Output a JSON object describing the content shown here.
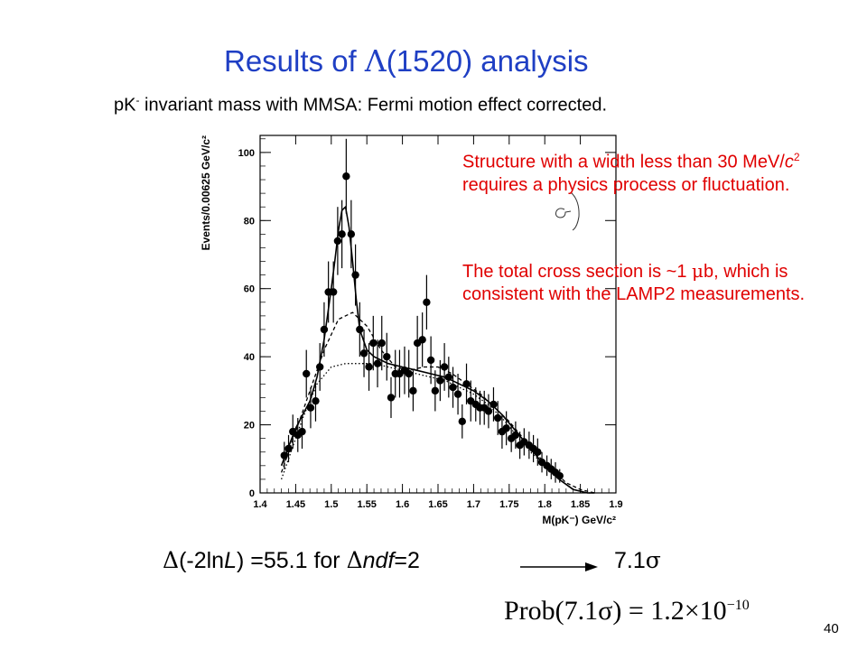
{
  "slide": {
    "title_pre": "Results of ",
    "title_sym": "Λ",
    "title_post": "(1520) analysis",
    "subtitle_a": "pK",
    "subtitle_sup": "-",
    "subtitle_b": " invariant mass with MMSA: Fermi motion effect corrected.",
    "annotation1_a": "Structure with a width less than 30 MeV/",
    "annotation1_c": "c",
    "annotation1_sup": "2",
    "annotation1_b": " requires a physics process or fluctuation.",
    "annotation2_a": "The total cross section is ~1 ",
    "annotation2_mu": "μ",
    "annotation2_b": "b, which is consistent with the LAMP2 measurements.",
    "eq_delta1": "Δ",
    "eq_part1": "(-2ln",
    "eq_L": "L",
    "eq_part2": ") =55.1 for ",
    "eq_delta2": "Δ",
    "eq_ndf": "ndf",
    "eq_part3": "=2",
    "sigma_result": "7.1",
    "sigma_sym": "σ",
    "prob_text": "Prob(7.1σ) = 1.2×10",
    "prob_exp": "−10",
    "page_number": "40"
  },
  "chart_data": {
    "type": "scatter",
    "xlabel": "M(pK⁻) GeV/c²",
    "ylabel": "Events/0.00625 GeV/c²",
    "xlim": [
      1.4,
      1.9
    ],
    "ylim": [
      0,
      105
    ],
    "x_ticks": [
      "1.4",
      "1.45",
      "1.5",
      "1.55",
      "1.6",
      "1.65",
      "1.7",
      "1.75",
      "1.8",
      "1.85",
      "1.9"
    ],
    "y_ticks": [
      "0",
      "20",
      "40",
      "60",
      "80",
      "100"
    ],
    "points": [
      {
        "x": 1.434,
        "y": 11,
        "e": 4
      },
      {
        "x": 1.44,
        "y": 13,
        "e": 4
      },
      {
        "x": 1.446,
        "y": 18,
        "e": 5
      },
      {
        "x": 1.453,
        "y": 17,
        "e": 5
      },
      {
        "x": 1.459,
        "y": 18,
        "e": 5
      },
      {
        "x": 1.465,
        "y": 35,
        "e": 7
      },
      {
        "x": 1.471,
        "y": 25,
        "e": 6
      },
      {
        "x": 1.478,
        "y": 27,
        "e": 6
      },
      {
        "x": 1.484,
        "y": 37,
        "e": 7
      },
      {
        "x": 1.49,
        "y": 48,
        "e": 8
      },
      {
        "x": 1.496,
        "y": 59,
        "e": 9
      },
      {
        "x": 1.503,
        "y": 59,
        "e": 9
      },
      {
        "x": 1.509,
        "y": 74,
        "e": 10
      },
      {
        "x": 1.515,
        "y": 76,
        "e": 10
      },
      {
        "x": 1.521,
        "y": 93,
        "e": 11
      },
      {
        "x": 1.528,
        "y": 76,
        "e": 10
      },
      {
        "x": 1.534,
        "y": 64,
        "e": 9
      },
      {
        "x": 1.54,
        "y": 48,
        "e": 8
      },
      {
        "x": 1.546,
        "y": 41,
        "e": 7
      },
      {
        "x": 1.553,
        "y": 37,
        "e": 7
      },
      {
        "x": 1.559,
        "y": 44,
        "e": 8
      },
      {
        "x": 1.565,
        "y": 38,
        "e": 7
      },
      {
        "x": 1.571,
        "y": 44,
        "e": 8
      },
      {
        "x": 1.578,
        "y": 40,
        "e": 7
      },
      {
        "x": 1.584,
        "y": 28,
        "e": 6
      },
      {
        "x": 1.59,
        "y": 35,
        "e": 7
      },
      {
        "x": 1.596,
        "y": 35,
        "e": 7
      },
      {
        "x": 1.603,
        "y": 36,
        "e": 7
      },
      {
        "x": 1.609,
        "y": 35,
        "e": 7
      },
      {
        "x": 1.615,
        "y": 30,
        "e": 6
      },
      {
        "x": 1.621,
        "y": 44,
        "e": 8
      },
      {
        "x": 1.628,
        "y": 45,
        "e": 8
      },
      {
        "x": 1.634,
        "y": 56,
        "e": 8
      },
      {
        "x": 1.64,
        "y": 39,
        "e": 7
      },
      {
        "x": 1.646,
        "y": 30,
        "e": 6
      },
      {
        "x": 1.653,
        "y": 33,
        "e": 6
      },
      {
        "x": 1.659,
        "y": 37,
        "e": 7
      },
      {
        "x": 1.665,
        "y": 34,
        "e": 6
      },
      {
        "x": 1.671,
        "y": 31,
        "e": 6
      },
      {
        "x": 1.678,
        "y": 29,
        "e": 6
      },
      {
        "x": 1.684,
        "y": 21,
        "e": 5
      },
      {
        "x": 1.69,
        "y": 32,
        "e": 6
      },
      {
        "x": 1.696,
        "y": 27,
        "e": 6
      },
      {
        "x": 1.703,
        "y": 26,
        "e": 5
      },
      {
        "x": 1.709,
        "y": 25,
        "e": 5
      },
      {
        "x": 1.715,
        "y": 25,
        "e": 5
      },
      {
        "x": 1.721,
        "y": 24,
        "e": 5
      },
      {
        "x": 1.728,
        "y": 26,
        "e": 5
      },
      {
        "x": 1.734,
        "y": 22,
        "e": 5
      },
      {
        "x": 1.74,
        "y": 18,
        "e": 5
      },
      {
        "x": 1.746,
        "y": 19,
        "e": 5
      },
      {
        "x": 1.753,
        "y": 16,
        "e": 4
      },
      {
        "x": 1.759,
        "y": 17,
        "e": 4
      },
      {
        "x": 1.765,
        "y": 14,
        "e": 4
      },
      {
        "x": 1.771,
        "y": 15,
        "e": 4
      },
      {
        "x": 1.778,
        "y": 14,
        "e": 4
      },
      {
        "x": 1.784,
        "y": 13,
        "e": 4
      },
      {
        "x": 1.79,
        "y": 12,
        "e": 4
      },
      {
        "x": 1.796,
        "y": 9,
        "e": 3
      },
      {
        "x": 1.803,
        "y": 8,
        "e": 3
      },
      {
        "x": 1.809,
        "y": 7,
        "e": 3
      },
      {
        "x": 1.815,
        "y": 6,
        "e": 3
      },
      {
        "x": 1.821,
        "y": 5,
        "e": 2
      }
    ],
    "curves": [
      {
        "style": "solid",
        "x": [
          1.43,
          1.45,
          1.47,
          1.48,
          1.49,
          1.5,
          1.505,
          1.51,
          1.515,
          1.52,
          1.525,
          1.53,
          1.535,
          1.54,
          1.55,
          1.56,
          1.58,
          1.6,
          1.62,
          1.64,
          1.66,
          1.68,
          1.7,
          1.72,
          1.74,
          1.76,
          1.78,
          1.8,
          1.82,
          1.84,
          1.86,
          1.87
        ],
        "y": [
          8,
          19,
          27,
          34,
          45,
          60,
          68,
          77,
          83,
          84,
          78,
          68,
          57,
          48,
          42,
          40,
          38,
          37,
          36,
          35,
          34,
          32,
          30,
          27,
          23,
          18,
          13,
          8,
          4,
          1,
          0,
          0
        ]
      },
      {
        "style": "dashed",
        "x": [
          1.43,
          1.45,
          1.47,
          1.49,
          1.51,
          1.53,
          1.55,
          1.57,
          1.59,
          1.61,
          1.63,
          1.65,
          1.67,
          1.69,
          1.71,
          1.73,
          1.75,
          1.77,
          1.79,
          1.81,
          1.83,
          1.85,
          1.87
        ],
        "y": [
          6,
          18,
          30,
          42,
          51,
          53,
          49,
          42,
          37,
          36,
          37,
          37,
          35,
          32,
          29,
          25,
          21,
          16,
          11,
          7,
          3,
          1,
          0
        ]
      },
      {
        "style": "dotted",
        "x": [
          1.43,
          1.44,
          1.46,
          1.48,
          1.5,
          1.52,
          1.54,
          1.56,
          1.58,
          1.6,
          1.62,
          1.64,
          1.66,
          1.68,
          1.7,
          1.72,
          1.74,
          1.76,
          1.78,
          1.8,
          1.82,
          1.84,
          1.86,
          1.87
        ],
        "y": [
          4,
          10,
          22,
          32,
          37,
          38,
          38,
          38,
          37,
          36,
          35,
          34,
          33,
          31,
          29,
          26,
          22,
          17,
          12,
          8,
          4,
          1,
          0,
          0
        ]
      }
    ]
  }
}
